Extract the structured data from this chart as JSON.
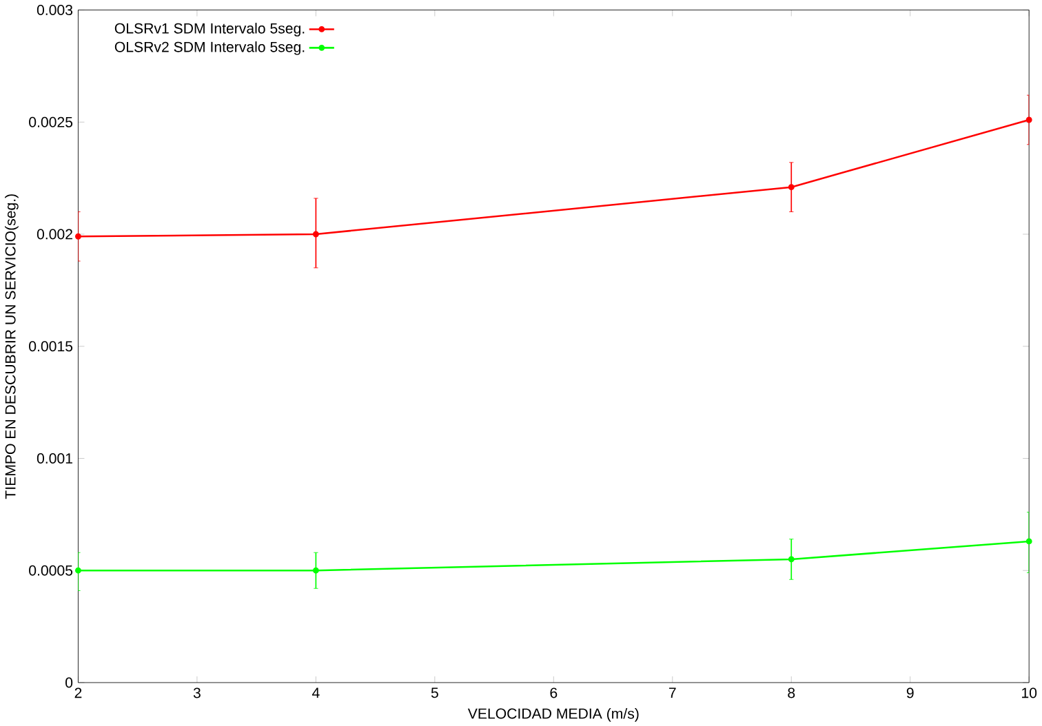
{
  "chart_data": {
    "type": "line",
    "xlabel": "VELOCIDAD MEDIA (m/s)",
    "ylabel": "TIEMPO EN DESCUBRIR UN SERVICIO(seg.)",
    "x": [
      2,
      4,
      8,
      10
    ],
    "series": [
      {
        "name": "OLSRv1 SDM Intervalo 5seg.",
        "color": "#ff0000",
        "values": [
          0.00199,
          0.002,
          0.00221,
          0.00251
        ],
        "errors": [
          [
            0.00188,
            0.0021
          ],
          [
            0.00185,
            0.00216
          ],
          [
            0.0021,
            0.00232
          ],
          [
            0.0024,
            0.00262
          ]
        ]
      },
      {
        "name": "OLSRv2 SDM Intervalo 5seg.",
        "color": "#00ff00",
        "values": [
          0.0005,
          0.0005,
          0.00055,
          0.00063
        ],
        "errors": [
          [
            0.00041,
            0.00058
          ],
          [
            0.00042,
            0.00058
          ],
          [
            0.00046,
            0.00064
          ],
          [
            0.00049,
            0.00076
          ]
        ]
      }
    ],
    "xlim": [
      2,
      10
    ],
    "xticks": [
      2,
      3,
      4,
      5,
      6,
      7,
      8,
      9,
      10
    ],
    "ylim": [
      0,
      0.003
    ],
    "yticks": [
      0,
      0.0005,
      0.001,
      0.0015,
      0.002,
      0.0025,
      0.003
    ],
    "legend": "top left",
    "marker": "circle",
    "grid": false
  }
}
